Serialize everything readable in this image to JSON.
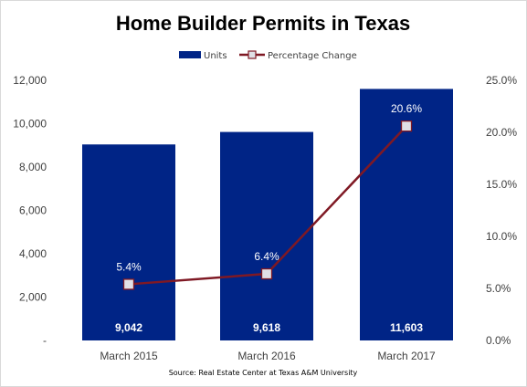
{
  "chart_data": {
    "type": "bar",
    "title": "Home Builder Permits in Texas",
    "categories": [
      "March 2015",
      "March 2016",
      "March 2017"
    ],
    "series": [
      {
        "name": "Units",
        "type": "bar",
        "axis": "left",
        "values": [
          9042,
          9618,
          11603
        ],
        "labels": [
          "9,042",
          "9,618",
          "11,603"
        ],
        "color": "#002486"
      },
      {
        "name": "Percentage Change",
        "type": "line",
        "axis": "right",
        "values": [
          5.4,
          6.4,
          20.6
        ],
        "labels": [
          "5.4%",
          "6.4%",
          "20.6%"
        ],
        "color": "#7f1924"
      }
    ],
    "y_left": {
      "ylim": [
        0,
        12000
      ],
      "ticks": [
        0,
        2000,
        4000,
        6000,
        8000,
        10000,
        12000
      ],
      "tick_labels": [
        "-",
        "2,000",
        "4,000",
        "6,000",
        "8,000",
        "10,000",
        "12,000"
      ]
    },
    "y_right": {
      "ylim": [
        0,
        25
      ],
      "ticks": [
        0,
        5,
        10,
        15,
        20,
        25
      ],
      "tick_labels": [
        "0.0%",
        "5.0%",
        "10.0%",
        "15.0%",
        "20.0%",
        "25.0%"
      ]
    },
    "legend": "top",
    "grid": false,
    "source": "Source: Real Estate Center at Texas A&M University"
  }
}
